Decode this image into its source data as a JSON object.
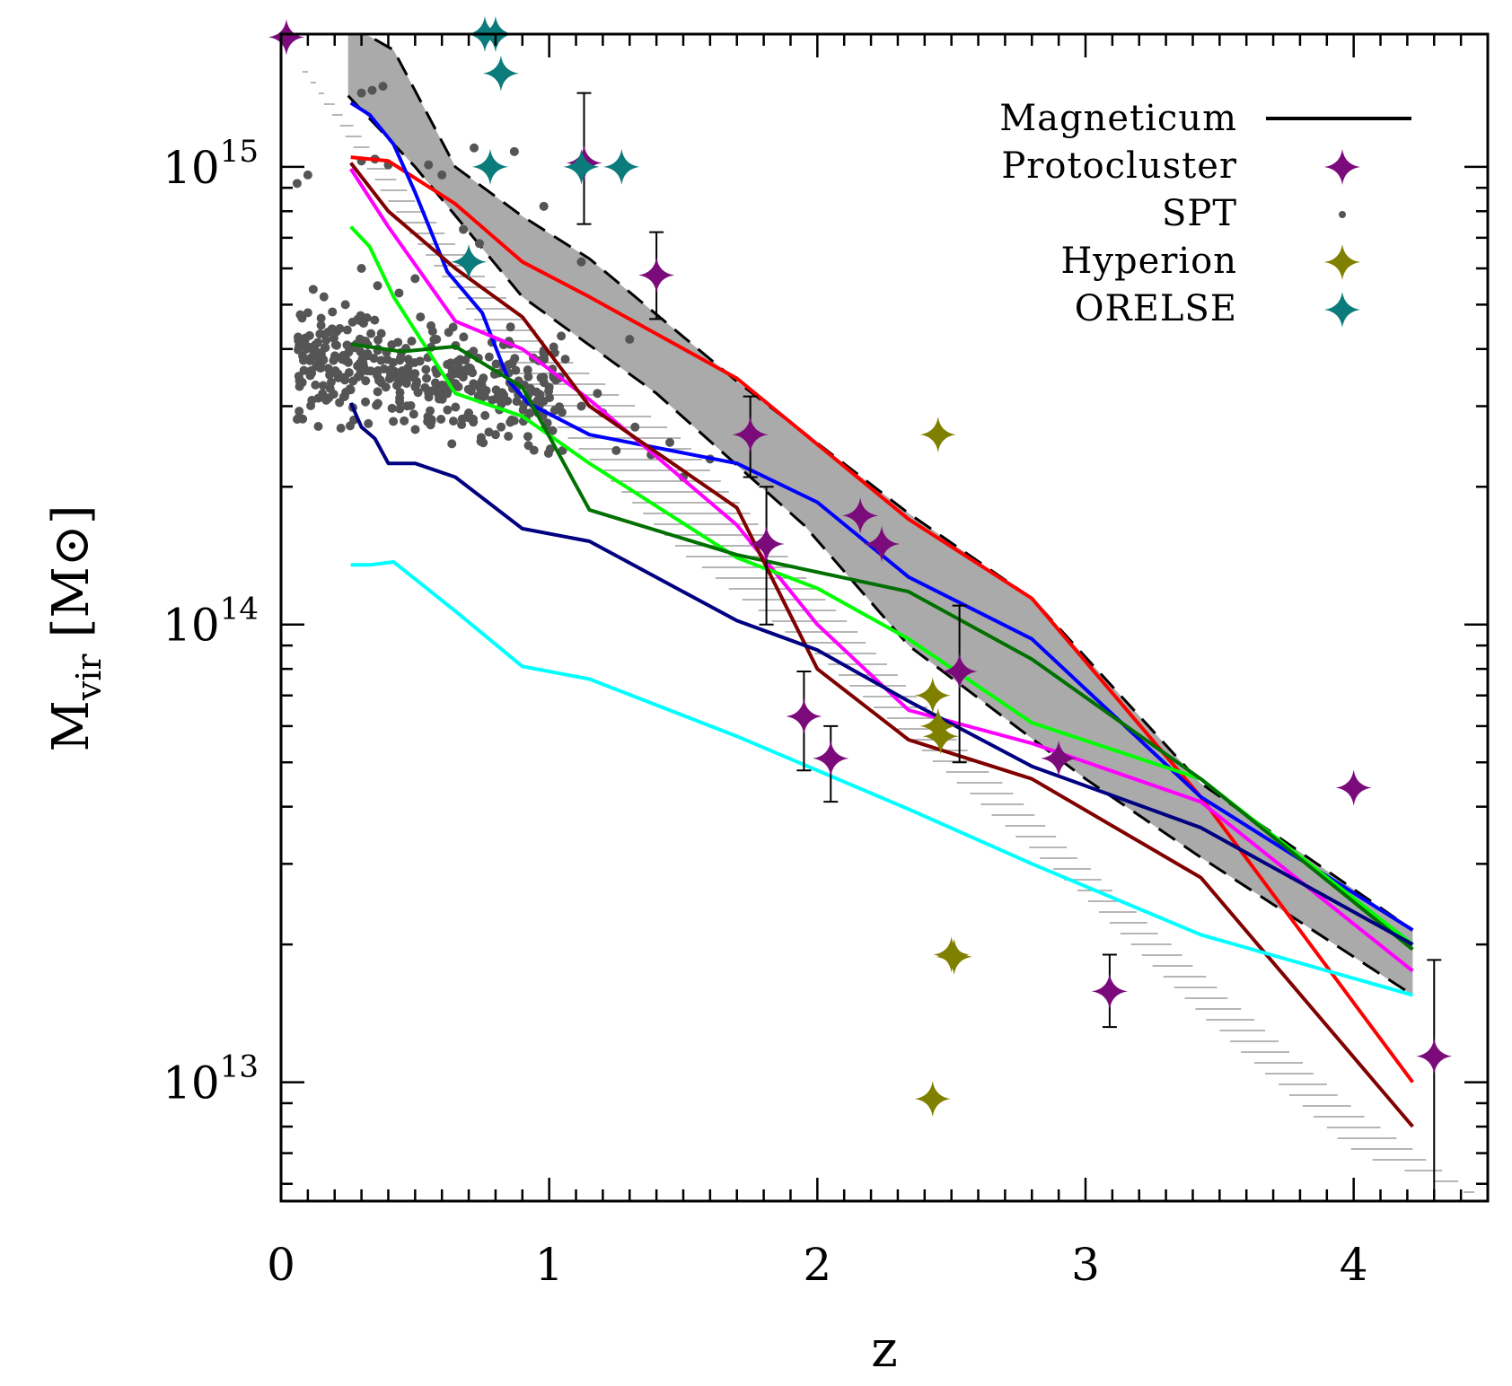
{
  "chart_data": {
    "type": "scatter",
    "x_axis": {
      "label": "z",
      "range": [
        0,
        4.5
      ],
      "tick_labels": [
        "0",
        "1",
        "2",
        "3",
        "4"
      ],
      "ticks": [
        0,
        1,
        2,
        3,
        4
      ]
    },
    "y_axis": {
      "label_main": "M",
      "label_sub": "vir",
      "label_unit": "[M⊙]",
      "scale": "log",
      "range": [
        5500000000000.0,
        1950000000000000.0
      ],
      "tick_values": [
        10000000000000.0,
        100000000000000.0,
        1000000000000000.0
      ],
      "tick_labels": [
        {
          "base": "10",
          "exp": "13"
        },
        {
          "base": "10",
          "exp": "14"
        },
        {
          "base": "10",
          "exp": "15"
        }
      ]
    },
    "legend": {
      "position": "top-right",
      "items": [
        {
          "label": "Magneticum",
          "symbol": "line",
          "color": "#000000"
        },
        {
          "label": "Protocluster",
          "symbol": "star",
          "color": "#7b0b7b"
        },
        {
          "label": "SPT",
          "symbol": "dot",
          "color": "#555555"
        },
        {
          "label": "Hyperion",
          "symbol": "star",
          "color": "#808000"
        },
        {
          "label": "ORELSE",
          "symbol": "star",
          "color": "#0b7b7b"
        }
      ]
    },
    "magneticum_band": {
      "color": "#aaaaaa",
      "upper": [
        [
          0.25,
          2050000000000000.0
        ],
        [
          0.42,
          1800000000000000.0
        ],
        [
          0.65,
          1000000000000000.0
        ],
        [
          0.9,
          780000000000000.0
        ],
        [
          1.15,
          630000000000000.0
        ],
        [
          1.7,
          340000000000000.0
        ],
        [
          2.34,
          175000000000000.0
        ],
        [
          2.8,
          114000000000000.0
        ],
        [
          3.43,
          45000000000000.0
        ],
        [
          4.22,
          21500000000000.0
        ]
      ],
      "lower": [
        [
          0.25,
          1430000000000000.0
        ],
        [
          0.5,
          1000000000000000.0
        ],
        [
          0.9,
          520000000000000.0
        ],
        [
          1.4,
          320000000000000.0
        ],
        [
          1.95,
          165000000000000.0
        ],
        [
          2.34,
          90000000000000.0
        ],
        [
          3.0,
          46000000000000.0
        ],
        [
          3.43,
          31000000000000.0
        ],
        [
          4.22,
          15500000000000.0
        ]
      ]
    },
    "hatch_region": {
      "color": "#9e9e9e",
      "upper": [
        [
          0.0,
          1900000000000000.0
        ],
        [
          0.5,
          850000000000000.0
        ],
        [
          1.0,
          410000000000000.0
        ],
        [
          1.5,
          255000000000000.0
        ],
        [
          2.0,
          120000000000000.0
        ],
        [
          2.5,
          58000000000000.0
        ],
        [
          3.0,
          30000000000000.0
        ],
        [
          3.5,
          16000000000000.0
        ],
        [
          4.0,
          8800000000000.0
        ],
        [
          4.5,
          5500000000000.0
        ]
      ],
      "lower": [
        [
          0.0,
          1900000000000000.0
        ],
        [
          0.5,
          680000000000000.0
        ],
        [
          1.0,
          280000000000000.0
        ],
        [
          1.5,
          142000000000000.0
        ],
        [
          2.0,
          85000000000000.0
        ],
        [
          2.5,
          46000000000000.0
        ],
        [
          3.0,
          25000000000000.0
        ],
        [
          3.5,
          12800000000000.0
        ],
        [
          4.0,
          7000000000000.0
        ],
        [
          4.5,
          5500000000000.0
        ]
      ]
    },
    "series": [
      {
        "color": "#ff0000",
        "points": [
          [
            0.26,
            1050000000000000.0
          ],
          [
            0.4,
            1030000000000000.0
          ],
          [
            0.65,
            830000000000000.0
          ],
          [
            0.9,
            620000000000000.0
          ],
          [
            1.15,
            520000000000000.0
          ],
          [
            1.7,
            345000000000000.0
          ],
          [
            2.34,
            170000000000000.0
          ],
          [
            2.8,
            114000000000000.0
          ],
          [
            3.43,
            42000000000000.0
          ],
          [
            4.22,
            10000000000000.0
          ]
        ]
      },
      {
        "color": "#0000ff",
        "points": [
          [
            0.26,
            1380000000000000.0
          ],
          [
            0.33,
            1300000000000000.0
          ],
          [
            0.42,
            1120000000000000.0
          ],
          [
            0.5,
            880000000000000.0
          ],
          [
            0.62,
            590000000000000.0
          ],
          [
            0.75,
            480000000000000.0
          ],
          [
            0.85,
            340000000000000.0
          ],
          [
            0.92,
            305000000000000.0
          ],
          [
            1.15,
            260000000000000.0
          ],
          [
            1.7,
            225000000000000.0
          ],
          [
            2.0,
            185000000000000.0
          ],
          [
            2.34,
            127000000000000.0
          ],
          [
            2.8,
            93000000000000.0
          ],
          [
            3.43,
            42000000000000.0
          ],
          [
            4.22,
            21500000000000.0
          ]
        ]
      },
      {
        "color": "#ff00ff",
        "points": [
          [
            0.26,
            990000000000000.0
          ],
          [
            0.4,
            740000000000000.0
          ],
          [
            0.65,
            460000000000000.0
          ],
          [
            0.9,
            400000000000000.0
          ],
          [
            1.15,
            310000000000000.0
          ],
          [
            1.7,
            165000000000000.0
          ],
          [
            2.0,
            100000000000000.0
          ],
          [
            2.34,
            65000000000000.0
          ],
          [
            2.8,
            55000000000000.0
          ],
          [
            3.43,
            41000000000000.0
          ],
          [
            4.22,
            17500000000000.0
          ]
        ]
      },
      {
        "color": "#00ff00",
        "points": [
          [
            0.26,
            740000000000000.0
          ],
          [
            0.33,
            670000000000000.0
          ],
          [
            0.42,
            520000000000000.0
          ],
          [
            0.65,
            320000000000000.0
          ],
          [
            0.9,
            285000000000000.0
          ],
          [
            1.15,
            225000000000000.0
          ],
          [
            1.7,
            140000000000000.0
          ],
          [
            2.0,
            120000000000000.0
          ],
          [
            2.34,
            93000000000000.0
          ],
          [
            2.8,
            61000000000000.0
          ],
          [
            3.43,
            46000000000000.0
          ],
          [
            4.22,
            20000000000000.0
          ]
        ]
      },
      {
        "color": "#007000",
        "points": [
          [
            0.26,
            410000000000000.0
          ],
          [
            0.45,
            395000000000000.0
          ],
          [
            0.65,
            405000000000000.0
          ],
          [
            0.9,
            330000000000000.0
          ],
          [
            1.15,
            178000000000000.0
          ],
          [
            1.7,
            142000000000000.0
          ],
          [
            2.34,
            118000000000000.0
          ],
          [
            2.8,
            84000000000000.0
          ],
          [
            3.43,
            46000000000000.0
          ],
          [
            4.22,
            19500000000000.0
          ]
        ]
      },
      {
        "color": "#800000",
        "points": [
          [
            0.26,
            1020000000000000.0
          ],
          [
            0.4,
            800000000000000.0
          ],
          [
            0.65,
            600000000000000.0
          ],
          [
            0.9,
            470000000000000.0
          ],
          [
            1.15,
            300000000000000.0
          ],
          [
            1.7,
            180000000000000.0
          ],
          [
            2.0,
            80000000000000.0
          ],
          [
            2.34,
            56000000000000.0
          ],
          [
            2.8,
            46000000000000.0
          ],
          [
            3.43,
            28000000000000.0
          ],
          [
            4.22,
            8000000000000.0
          ]
        ]
      },
      {
        "color": "#000080",
        "points": [
          [
            0.26,
            305000000000000.0
          ],
          [
            0.3,
            270000000000000.0
          ],
          [
            0.35,
            255000000000000.0
          ],
          [
            0.4,
            225000000000000.0
          ],
          [
            0.5,
            225000000000000.0
          ],
          [
            0.65,
            210000000000000.0
          ],
          [
            0.9,
            162000000000000.0
          ],
          [
            1.15,
            152000000000000.0
          ],
          [
            1.7,
            102000000000000.0
          ],
          [
            2.0,
            88000000000000.0
          ],
          [
            2.34,
            68000000000000.0
          ],
          [
            2.8,
            49000000000000.0
          ],
          [
            3.43,
            36000000000000.0
          ],
          [
            4.22,
            20000000000000.0
          ]
        ]
      },
      {
        "color": "#00ffff",
        "points": [
          [
            0.26,
            135000000000000.0
          ],
          [
            0.33,
            135000000000000.0
          ],
          [
            0.42,
            137000000000000.0
          ],
          [
            0.65,
            107000000000000.0
          ],
          [
            0.9,
            81000000000000.0
          ],
          [
            1.15,
            76000000000000.0
          ],
          [
            1.7,
            57000000000000.0
          ],
          [
            2.34,
            39500000000000.0
          ],
          [
            2.8,
            30000000000000.0
          ],
          [
            3.43,
            21000000000000.0
          ],
          [
            4.22,
            15500000000000.0
          ]
        ]
      }
    ],
    "protocluster": [
      {
        "x": 0.02,
        "y": 1920000000000000.0
      },
      {
        "x": 1.13,
        "y": 1020000000000000.0,
        "ylo": 750000000000000.0,
        "yhi": 1450000000000000.0
      },
      {
        "x": 1.4,
        "y": 580000000000000.0,
        "ylo": 465000000000000.0,
        "yhi": 720000000000000.0
      },
      {
        "x": 1.75,
        "y": 260000000000000.0,
        "ylo": 210000000000000.0,
        "yhi": 315000000000000.0
      },
      {
        "x": 1.81,
        "y": 150000000000000.0,
        "ylo": 100000000000000.0,
        "yhi": 200000000000000.0
      },
      {
        "x": 2.16,
        "y": 173000000000000.0
      },
      {
        "x": 2.24,
        "y": 150000000000000.0
      },
      {
        "x": 1.95,
        "y": 63000000000000.0,
        "ylo": 48000000000000.0,
        "yhi": 79000000000000.0
      },
      {
        "x": 2.05,
        "y": 51000000000000.0,
        "ylo": 41000000000000.0,
        "yhi": 60000000000000.0
      },
      {
        "x": 2.53,
        "y": 79000000000000.0,
        "ylo": 50000000000000.0,
        "yhi": 110000000000000.0
      },
      {
        "x": 2.9,
        "y": 51000000000000.0
      },
      {
        "x": 3.09,
        "y": 15800000000000.0,
        "ylo": 13200000000000.0,
        "yhi": 19000000000000.0
      },
      {
        "x": 4.0,
        "y": 44000000000000.0
      },
      {
        "x": 4.3,
        "y": 11400000000000.0,
        "ylo": 5500000000000.0,
        "yhi": 18500000000000.0
      }
    ],
    "hyperion": [
      {
        "x": 2.45,
        "y": 260000000000000.0
      },
      {
        "x": 2.43,
        "y": 70000000000000.0
      },
      {
        "x": 2.45,
        "y": 60000000000000.0
      },
      {
        "x": 2.46,
        "y": 57000000000000.0
      },
      {
        "x": 2.5,
        "y": 19000000000000.0
      },
      {
        "x": 2.51,
        "y": 18800000000000.0
      },
      {
        "x": 2.43,
        "y": 9200000000000.0
      }
    ],
    "orelse": [
      {
        "x": 0.76,
        "y": 1950000000000000.0
      },
      {
        "x": 0.8,
        "y": 1950000000000000.0
      },
      {
        "x": 0.82,
        "y": 1600000000000000.0
      },
      {
        "x": 0.78,
        "y": 1000000000000000.0
      },
      {
        "x": 1.12,
        "y": 1000000000000000.0
      },
      {
        "x": 1.27,
        "y": 1000000000000000.0
      },
      {
        "x": 0.7,
        "y": 620000000000000.0
      }
    ],
    "spt_isolated": [
      [
        0.3,
        1030000000000000.0
      ],
      [
        0.35,
        1040000000000000.0
      ],
      [
        0.4,
        1010000000000000.0
      ],
      [
        0.55,
        1010000000000000.0
      ],
      [
        0.6,
        960000000000000.0
      ],
      [
        0.72,
        1100000000000000.0
      ],
      [
        0.87,
        1080000000000000.0
      ],
      [
        0.98,
        820000000000000.0
      ],
      [
        1.12,
        620000000000000.0
      ],
      [
        0.06,
        920000000000000.0
      ],
      [
        0.1,
        960000000000000.0
      ],
      [
        0.3,
        1450000000000000.0
      ],
      [
        0.34,
        1470000000000000.0
      ],
      [
        0.38,
        1500000000000000.0
      ],
      [
        0.92,
        360000000000000.0
      ],
      [
        1.0,
        330000000000000.0
      ],
      [
        1.12,
        300000000000000.0
      ],
      [
        1.2,
        290000000000000.0
      ],
      [
        1.32,
        270000000000000.0
      ],
      [
        1.45,
        250000000000000.0
      ],
      [
        1.6,
        230000000000000.0
      ],
      [
        0.68,
        730000000000000.0
      ],
      [
        0.74,
        680000000000000.0
      ],
      [
        1.3,
        420000000000000.0
      ],
      [
        1.18,
        320000000000000.0
      ],
      [
        1.25,
        240000000000000.0
      ],
      [
        1.38,
        235000000000000.0
      ],
      [
        1.5,
        210000000000000.0
      ],
      [
        1.05,
        240000000000000.0
      ],
      [
        0.5,
        570000000000000.0
      ],
      [
        1.06,
        380000000000000.0
      ],
      [
        0.96,
        310000000000000.0
      ],
      [
        0.86,
        280000000000000.0
      ],
      [
        0.8,
        260000000000000.0
      ],
      [
        0.7,
        290000000000000.0
      ],
      [
        0.62,
        370000000000000.0
      ],
      [
        0.58,
        420000000000000.0
      ],
      [
        0.52,
        470000000000000.0
      ],
      [
        0.44,
        530000000000000.0
      ],
      [
        0.36,
        550000000000000.0
      ],
      [
        0.3,
        600000000000000.0
      ],
      [
        0.24,
        500000000000000.0
      ],
      [
        0.16,
        520000000000000.0
      ],
      [
        0.12,
        540000000000000.0
      ],
      [
        0.1,
        480000000000000.0
      ]
    ],
    "spt_cloud": {
      "count": 380,
      "z_range": [
        0.06,
        1.05
      ],
      "mass_range": [
        220000000000000.0,
        820000000000000.0
      ]
    }
  }
}
